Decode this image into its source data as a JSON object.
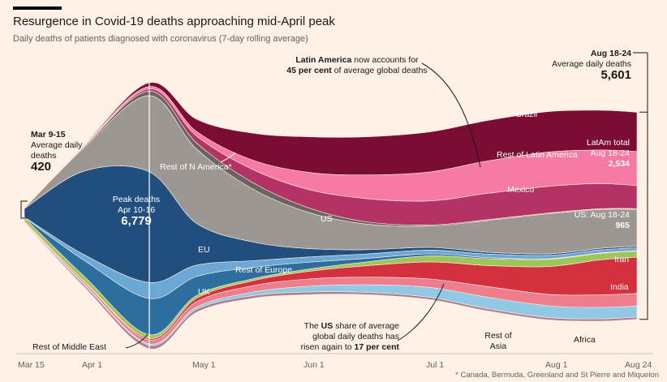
{
  "title": "Resurgence in Covid-19 deaths approaching mid-April peak",
  "subtitle": "Daily deaths of patients diagnosed with coronavirus (7-day rolling average)",
  "footnote": "* Canada, Bermuda, Greenland and St Pierre and Miquelon",
  "colors": {
    "background": "#fff1e5",
    "Rest of Middle East": "#b07f8f",
    "Africa": "#91c8e4",
    "Rest of Asia": "#ee7d8d",
    "India": "#d2313d",
    "Iran": "#9fc55a",
    "UK": "#2e6e9e",
    "Rest of Europe": "#6ba8d6",
    "EU": "#204e7d",
    "US": "#9d9793",
    "Rest of N America*": "#6b6360",
    "Mexico": "#b33464",
    "Rest of Latin America": "#f67aa3",
    "Brazil": "#7b0d34"
  },
  "annotations": {
    "mar_date": "Mar 9-15",
    "mar_label_1": "Average daily",
    "mar_label_2": "deaths",
    "mar_value": "420",
    "peak_1": "Peak deaths",
    "peak_2": "Apr 10-16",
    "peak_value": "6,779",
    "aug_date": "Aug 18-24",
    "aug_label": "Average daily deaths",
    "aug_value": "5,601",
    "latam_bold": "Latin America",
    "latam_rest_1": "now accounts for",
    "latam_bold_2": "45 per cent",
    "latam_rest_2": "of average global deaths",
    "latam_total_1": "LatAm total",
    "latam_total_2": "Aug 18-24",
    "latam_total_value": "2,534",
    "us_aug_1": "US: Aug 18-24",
    "us_aug_value": "965",
    "us_share_1": "The",
    "us_share_bold": "US",
    "us_share_2": "share of average",
    "us_share_3": "global daily deaths has",
    "us_share_4": "risen again to",
    "us_share_bold_2": "17 per cent"
  },
  "series_labels": {
    "brazil": "Brazil",
    "rest_latam": "Rest of Latin America",
    "mexico": "Mexico",
    "us": "US",
    "rest_n_america": "Rest of N America*",
    "eu": "EU",
    "rest_europe": "Rest of Europe",
    "uk": "UK",
    "iran": "Iran",
    "india": "India",
    "rest_asia_1": "Rest of",
    "rest_asia_2": "Asia",
    "africa": "Africa",
    "rest_middle_east": "Rest of Middle East"
  },
  "chart_data": {
    "type": "area",
    "layout": "streamgraph",
    "x": [
      "Mar 15",
      "Apr 1",
      "Apr 13",
      "May 1",
      "May 15",
      "Jun 1",
      "Jun 15",
      "Jul 1",
      "Jul 15",
      "Aug 1",
      "Aug 15",
      "Aug 24"
    ],
    "xtick_labels": [
      "Mar 15",
      "Apr 1",
      "May 1",
      "Jun 1",
      "Jul 1",
      "Aug 1",
      "Aug 24"
    ],
    "series": [
      {
        "name": "Rest of Middle East",
        "values": [
          20,
          60,
          90,
          80,
          70,
          70,
          60,
          60,
          60,
          60,
          60,
          60
        ]
      },
      {
        "name": "Africa",
        "values": [
          5,
          20,
          40,
          60,
          90,
          150,
          200,
          260,
          300,
          310,
          300,
          290
        ]
      },
      {
        "name": "Rest of Asia",
        "values": [
          20,
          60,
          100,
          140,
          170,
          190,
          200,
          220,
          280,
          300,
          330,
          330
        ]
      },
      {
        "name": "India",
        "values": [
          5,
          10,
          40,
          90,
          130,
          200,
          300,
          450,
          550,
          730,
          920,
          950
        ]
      },
      {
        "name": "Iran",
        "values": [
          95,
          130,
          100,
          70,
          50,
          60,
          100,
          160,
          180,
          190,
          170,
          160
        ]
      },
      {
        "name": "UK",
        "values": [
          10,
          420,
          950,
          500,
          300,
          180,
          90,
          50,
          30,
          15,
          10,
          10
        ]
      },
      {
        "name": "Rest of Europe",
        "values": [
          10,
          150,
          420,
          300,
          180,
          140,
          120,
          100,
          90,
          90,
          80,
          80
        ]
      },
      {
        "name": "EU",
        "values": [
          220,
          2200,
          2900,
          1100,
          500,
          220,
          110,
          70,
          50,
          40,
          40,
          40
        ]
      },
      {
        "name": "US",
        "values": [
          10,
          620,
          2000,
          1950,
          1400,
          950,
          670,
          560,
          830,
          1050,
          1020,
          965
        ]
      },
      {
        "name": "Rest of N America*",
        "values": [
          0,
          30,
          120,
          160,
          170,
          120,
          60,
          30,
          20,
          20,
          20,
          20
        ]
      },
      {
        "name": "Mexico",
        "values": [
          0,
          10,
          60,
          180,
          340,
          480,
          610,
          630,
          690,
          700,
          660,
          600
        ]
      },
      {
        "name": "Rest of Latin America",
        "values": [
          0,
          20,
          60,
          120,
          240,
          450,
          620,
          760,
          850,
          900,
          880,
          900
        ]
      },
      {
        "name": "Brazil",
        "values": [
          0,
          20,
          100,
          320,
          700,
          930,
          1000,
          1050,
          1060,
          1060,
          1040,
          1030
        ]
      }
    ],
    "totals": {
      "Mar 9-15": 420,
      "Apr 10-16": 6779,
      "Aug 18-24": 5601
    },
    "latam_total_aug_18_24": 2534,
    "us_aug_18_24": 965,
    "latam_share_pct": 45,
    "us_share_pct": 17
  }
}
